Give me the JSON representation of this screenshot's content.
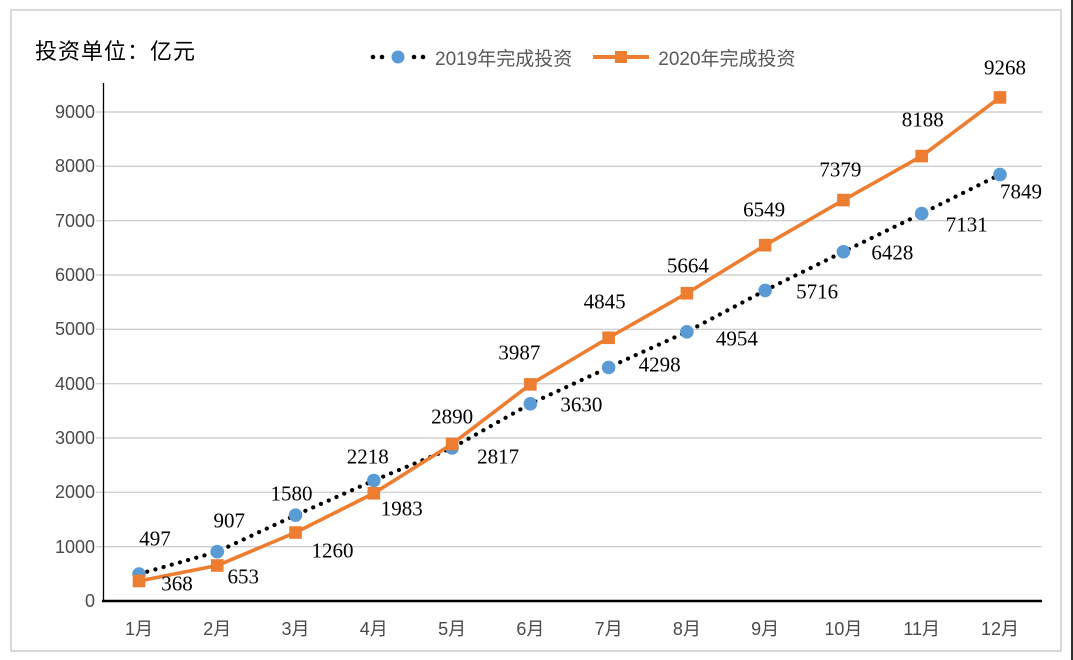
{
  "chart_data": {
    "type": "line",
    "title": "投资单位：亿元",
    "categories": [
      "1月",
      "2月",
      "3月",
      "4月",
      "5月",
      "6月",
      "7月",
      "8月",
      "9月",
      "10月",
      "11月",
      "12月"
    ],
    "yticks": [
      0,
      1000,
      2000,
      3000,
      4000,
      5000,
      6000,
      7000,
      8000,
      9000
    ],
    "ylim": [
      0,
      9000
    ],
    "grid": true,
    "legend_position": "top",
    "series": [
      {
        "name": "2019年完成投资",
        "color": "#5B9BD5",
        "line_color": "#000000",
        "line_style": "dotted",
        "marker": "circle",
        "values": [
          497,
          907,
          1580,
          2218,
          2817,
          3630,
          4298,
          4954,
          5716,
          6428,
          7131,
          7849
        ],
        "label_offsets": [
          [
            16,
            -35
          ],
          [
            12,
            -31
          ],
          [
            -4,
            -21
          ],
          [
            -6,
            -23
          ],
          [
            46,
            9
          ],
          [
            51,
            1
          ],
          [
            51,
            -2
          ],
          [
            50,
            7
          ],
          [
            52,
            2
          ],
          [
            49,
            1
          ],
          [
            45,
            11
          ],
          [
            21,
            17
          ]
        ]
      },
      {
        "name": "2020年完成投资",
        "color": "#ED7D31",
        "line_color": "#ED7D31",
        "line_style": "solid",
        "marker": "square",
        "values": [
          368,
          653,
          1260,
          1983,
          2890,
          3987,
          4845,
          5664,
          6549,
          7379,
          8188,
          9268
        ],
        "label_offsets": [
          [
            38,
            3
          ],
          [
            26,
            11
          ],
          [
            37,
            18
          ],
          [
            28,
            16
          ],
          [
            0,
            -27
          ],
          [
            -11,
            -31
          ],
          [
            -4,
            -36
          ],
          [
            1,
            -27
          ],
          [
            -1,
            -35
          ],
          [
            -3,
            -30
          ],
          [
            1,
            -36
          ],
          [
            5,
            -29
          ]
        ]
      }
    ],
    "colors": {
      "grid": "#d0d0d0",
      "axis": "#000000",
      "tick_label": "#4a4a4a",
      "data_label": "#000000",
      "legend_text": "#595959",
      "frame_border": "#d9d9d9"
    }
  }
}
